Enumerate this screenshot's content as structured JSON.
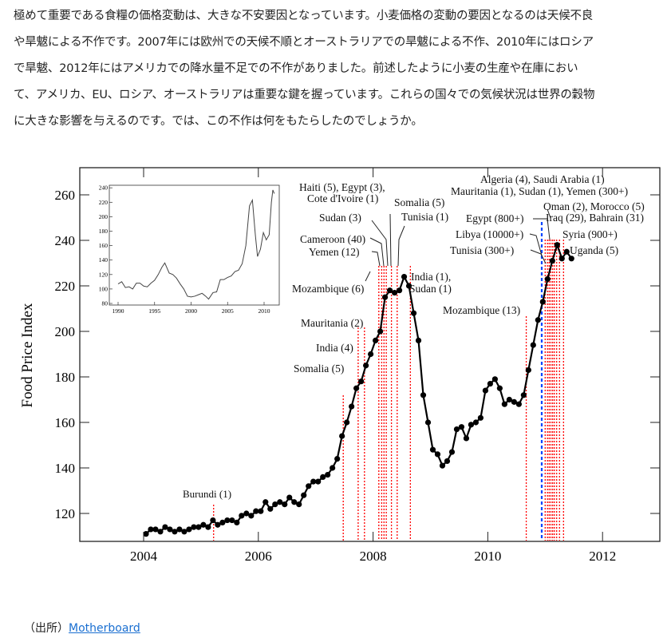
{
  "article": {
    "lines": [
      "極めて重要である食糧の価格変動は、大きな不安要因となっています。小麦価格の変動の要因となるのは天候不良",
      "や旱魃による不作です。2007年には欧州での天候不順とオーストラリアでの旱魃による不作、2010年にはロシア",
      "で旱魃、2012年にはアメリカでの降水量不足での不作がありました。前述したように小麦の生産や在庫におい",
      "て、アメリカ、EU、ロシア、オーストラリアは重要な鍵を握っています。これらの国々での気候状況は世界の穀物",
      "に大きな影響を与えるのです。では、この不作は何をもたらしたのでしょうか。"
    ]
  },
  "source": {
    "prefix": "（出所）",
    "link_text": "Motherboard"
  },
  "chart_data": [
    {
      "type": "line",
      "title": "",
      "xlabel": "",
      "ylabel": "Food Price Index",
      "xlim": [
        2003,
        2013
      ],
      "ylim": [
        108,
        270
      ],
      "xticks": [
        "2004",
        "2006",
        "2008",
        "2010",
        "2012"
      ],
      "yticks": [
        "120",
        "140",
        "160",
        "180",
        "200",
        "220",
        "240",
        "260"
      ],
      "grid": false,
      "series": [
        {
          "name": "Food Price Index (monthly)",
          "start": "2004-01",
          "values": [
            111,
            113,
            113,
            112,
            114,
            113,
            112,
            113,
            112,
            113,
            114,
            114,
            115,
            114,
            117,
            115,
            116,
            117,
            117,
            116,
            119,
            120,
            119,
            121,
            121,
            125,
            122,
            124,
            125,
            124,
            127,
            125,
            124,
            128,
            132,
            134,
            134,
            136,
            137,
            140,
            144,
            154,
            160,
            167,
            175,
            178,
            185,
            190,
            196,
            200,
            215,
            218,
            217,
            218,
            224,
            220,
            208,
            196,
            172,
            160,
            148,
            146,
            141,
            143,
            147,
            157,
            158,
            153,
            159,
            160,
            162,
            174,
            177,
            179,
            175,
            168,
            170,
            169,
            168,
            172,
            183,
            194,
            205,
            213,
            223,
            231,
            238,
            232,
            235,
            232
          ]
        }
      ],
      "event_lines": {
        "red": [
          2005.22,
          2007.48,
          2007.74,
          2007.85,
          2008.1,
          2008.15,
          2008.19,
          2008.23,
          2008.32,
          2008.42,
          2008.65,
          2010.67,
          2011.0,
          2011.04,
          2011.07,
          2011.1,
          2011.13,
          2011.16,
          2011.2,
          2011.25,
          2011.32
        ],
        "blue": [
          2010.94
        ]
      },
      "annotations": [
        "Burundi (1)",
        "Somalia (5)",
        "India (4)",
        "Mauritania (2)",
        "Mozambique (6)",
        "Yemen (12)",
        "Cameroon (40)",
        "Sudan (3)",
        "Haiti (5), Egypt (3),",
        "Cote d'Ivoire (1)",
        "Somalia (5)",
        "Tunisia (1)",
        "India (1),",
        "Sudan (1)",
        "Mozambique (13)",
        "Algeria (4), Saudi Arabia (1)",
        "Mauritania (1), Sudan (1), Yemen (300+)",
        "Oman (2), Morocco (5)",
        "Egypt (800+)",
        "Iraq (29), Bahrain (31)",
        "Libya (10000+)",
        "Syria (900+)",
        "Tunisia (300+)",
        "Uganda (5)"
      ],
      "colors": {
        "line": "#000000",
        "event_red": "#ff0000",
        "event_blue": "#0044ff"
      }
    },
    {
      "type": "line",
      "title": "inset",
      "xlim": [
        1989,
        2012
      ],
      "ylim": [
        80,
        240
      ],
      "xticks": [
        "1990",
        "1995",
        "2000",
        "2005",
        "2010"
      ],
      "yticks": [
        "80",
        "100",
        "120",
        "140",
        "160",
        "180",
        "200",
        "220",
        "240"
      ],
      "series": [
        {
          "name": "Food Price Index (long-term)",
          "x": [
            1990,
            1990.5,
            1991,
            1991.5,
            1992,
            1992.5,
            1993,
            1993.5,
            1994,
            1994.5,
            1995,
            1995.5,
            1996,
            1996.4,
            1997,
            1997.5,
            1998,
            1998.5,
            1999,
            1999.5,
            2000,
            2000.5,
            2001,
            2001.5,
            2002,
            2002.4,
            2003,
            2003.5,
            2004,
            2004.5,
            2005,
            2005.5,
            2006,
            2006.5,
            2007,
            2007.5,
            2008,
            2008.4,
            2008.8,
            2009.1,
            2009.5,
            2009.9,
            2010.3,
            2010.7,
            2011.0,
            2011.2,
            2011.4
          ],
          "values": [
            107,
            110,
            102,
            103,
            100,
            108,
            108,
            104,
            103,
            108,
            112,
            120,
            130,
            136,
            122,
            120,
            115,
            107,
            100,
            90,
            89,
            90,
            92,
            94,
            90,
            86,
            95,
            96,
            113,
            113,
            116,
            118,
            124,
            126,
            135,
            160,
            215,
            223,
            175,
            145,
            155,
            178,
            168,
            175,
            220,
            237,
            232
          ]
        }
      ]
    }
  ]
}
